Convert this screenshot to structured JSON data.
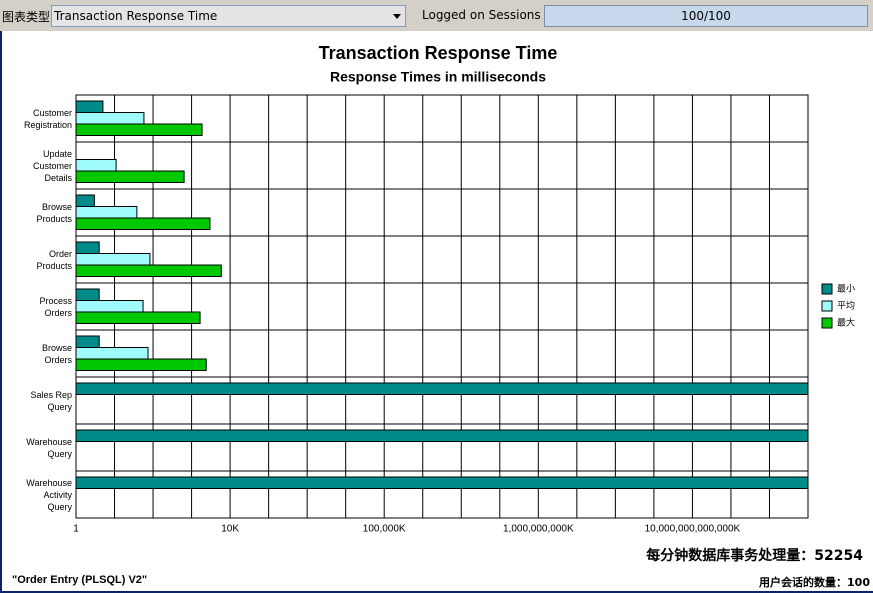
{
  "toolbar": {
    "chart_type_label": "图表类型",
    "chart_type": "Transaction Response Time",
    "sessions_label": "Logged on Sessions",
    "sessions": "100/100"
  },
  "chart_data": {
    "type": "hbar",
    "title": "Transaction Response Time",
    "subtitle": "Response Times in milliseconds",
    "x_scale": "log",
    "categories": [
      "Customer\nRegistration",
      "Update\nCustomer\nDetails",
      "Browse\nProducts",
      "Order\nProducts",
      "Process\nOrders",
      "Browse\nOrders",
      "Sales Rep\nQuery",
      "Warehouse\nQuery",
      "Warehouse\nActivity\nQuery"
    ],
    "series": [
      {
        "name": "最小",
        "color": "#008b8b",
        "values": [
          5,
          null,
          3,
          4,
          4,
          4,
          1e+19,
          1e+19,
          1e+19
        ]
      },
      {
        "name": "平均",
        "color": "#a0fcfc",
        "values": [
          58,
          11,
          38,
          83,
          55,
          74,
          null,
          null,
          null
        ]
      },
      {
        "name": "最大",
        "color": "#00c800",
        "values": [
          1870,
          640,
          3000,
          5900,
          1660,
          2400,
          null,
          null,
          null
        ]
      }
    ],
    "xlim": [
      1,
      1e+19
    ],
    "xticks": [
      1,
      {
        "value": 10000,
        "label": "10K"
      },
      {
        "value": 100000000,
        "label": "100,000K"
      },
      {
        "value": 1000000000000,
        "label": "1,000,000,000K"
      },
      {
        "value": 10000000000000000,
        "label": "10,000,000,000,000K"
      }
    ],
    "xgrid": [
      10,
      100,
      1000,
      100000.0,
      1000000.0,
      10000000.0,
      1000000000.0,
      10000000000.0,
      100000000000.0,
      10000000000000.0,
      100000000000000.0,
      1000000000000000.0,
      1e+17,
      1e+18
    ],
    "grid": true,
    "legend": "right"
  },
  "footer": {
    "tpm_label": "每分钟数据库事务处理量：",
    "tpm": 52254,
    "project": "\"Order Entry (PLSQL) V2\"",
    "sessions_label": "用户会话的数量：",
    "sessions": 100
  }
}
